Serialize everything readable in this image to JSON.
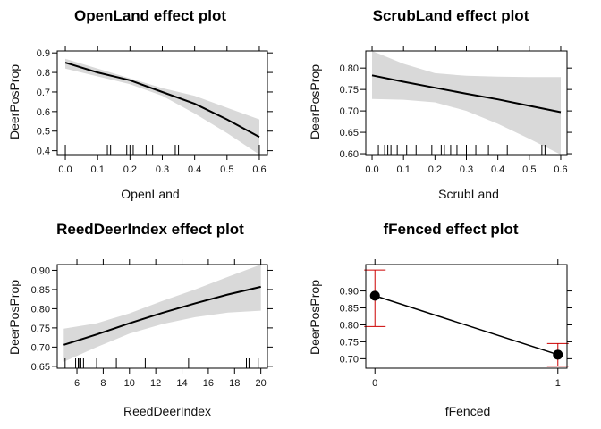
{
  "chart_data": [
    {
      "type": "line",
      "title": "OpenLand effect plot",
      "xlabel": "OpenLand",
      "ylabel": "DeerPosProp",
      "xlim": [
        -0.025,
        0.625
      ],
      "ylim": [
        0.38,
        0.91
      ],
      "xticks": [
        0.0,
        0.1,
        0.2,
        0.3,
        0.4,
        0.5,
        0.6
      ],
      "xtick_labels": [
        "0.0",
        "0.1",
        "0.2",
        "0.3",
        "0.4",
        "0.5",
        "0.6"
      ],
      "yticks": [
        0.4,
        0.5,
        0.6,
        0.7,
        0.8,
        0.9
      ],
      "ytick_labels": [
        "0.4",
        "0.5",
        "0.6",
        "0.7",
        "0.8",
        "0.9"
      ],
      "x": [
        0.0,
        0.1,
        0.2,
        0.3,
        0.4,
        0.5,
        0.6
      ],
      "fit": [
        0.85,
        0.8,
        0.76,
        0.7,
        0.64,
        0.56,
        0.47
      ],
      "lower": [
        0.82,
        0.78,
        0.74,
        0.68,
        0.59,
        0.49,
        0.38
      ],
      "upper": [
        0.87,
        0.82,
        0.77,
        0.72,
        0.68,
        0.62,
        0.56
      ],
      "rug": [
        0.0,
        0.13,
        0.14,
        0.19,
        0.2,
        0.21,
        0.25,
        0.27,
        0.34,
        0.35,
        0.6
      ],
      "band_color": "#d9d9d9",
      "line_color": "#000000"
    },
    {
      "type": "line",
      "title": "ScrubLand effect plot",
      "xlabel": "ScrubLand",
      "ylabel": "DeerPosProp",
      "xlim": [
        -0.02,
        0.62
      ],
      "ylim": [
        0.598,
        0.84
      ],
      "xticks": [
        0.0,
        0.1,
        0.2,
        0.3,
        0.4,
        0.5,
        0.6
      ],
      "xtick_labels": [
        "0.0",
        "0.1",
        "0.2",
        "0.3",
        "0.4",
        "0.5",
        "0.6"
      ],
      "yticks": [
        0.6,
        0.65,
        0.7,
        0.75,
        0.8
      ],
      "ytick_labels": [
        "0.60",
        "0.65",
        "0.70",
        "0.75",
        "0.80"
      ],
      "x": [
        0.0,
        0.1,
        0.2,
        0.3,
        0.4,
        0.5,
        0.6
      ],
      "fit": [
        0.783,
        0.768,
        0.754,
        0.74,
        0.727,
        0.712,
        0.697
      ],
      "lower": [
        0.728,
        0.726,
        0.72,
        0.7,
        0.67,
        0.635,
        0.598
      ],
      "upper": [
        0.84,
        0.81,
        0.788,
        0.782,
        0.78,
        0.779,
        0.779
      ],
      "rug": [
        0.02,
        0.04,
        0.05,
        0.06,
        0.08,
        0.11,
        0.14,
        0.19,
        0.22,
        0.23,
        0.25,
        0.27,
        0.3,
        0.33,
        0.37,
        0.43,
        0.54,
        0.55
      ],
      "band_color": "#d9d9d9",
      "line_color": "#000000"
    },
    {
      "type": "line",
      "title": "ReedDeerIndex effect plot",
      "xlabel": "ReedDeerIndex",
      "ylabel": "DeerPosProp",
      "xlim": [
        4.5,
        20.5
      ],
      "ylim": [
        0.645,
        0.915
      ],
      "xticks": [
        6,
        8,
        10,
        12,
        14,
        16,
        18,
        20
      ],
      "xtick_labels": [
        "6",
        "8",
        "10",
        "12",
        "14",
        "16",
        "18",
        "20"
      ],
      "yticks": [
        0.65,
        0.7,
        0.75,
        0.8,
        0.85,
        0.9
      ],
      "ytick_labels": [
        "0.65",
        "0.70",
        "0.75",
        "0.80",
        "0.85",
        "0.90"
      ],
      "x": [
        5,
        7.5,
        10,
        12.5,
        15,
        17.5,
        20
      ],
      "fit": [
        0.706,
        0.733,
        0.762,
        0.789,
        0.814,
        0.837,
        0.857
      ],
      "lower": [
        0.662,
        0.7,
        0.735,
        0.76,
        0.778,
        0.79,
        0.795
      ],
      "upper": [
        0.748,
        0.762,
        0.788,
        0.82,
        0.85,
        0.883,
        0.915
      ],
      "rug": [
        5.1,
        5.9,
        6.1,
        6.2,
        6.3,
        6.5,
        7.5,
        9.0,
        11.2,
        14.5,
        18.9,
        19.1,
        19.8
      ],
      "band_color": "#d9d9d9",
      "line_color": "#000000"
    },
    {
      "type": "scatter",
      "title": "fFenced effect plot",
      "xlabel": "fFenced",
      "ylabel": "DeerPosProp",
      "categories": [
        "0",
        "1"
      ],
      "xlim": [
        -0.05,
        1.05
      ],
      "ylim": [
        0.672,
        0.978
      ],
      "yticks": [
        0.7,
        0.75,
        0.8,
        0.85,
        0.9
      ],
      "ytick_labels": [
        "0.70",
        "0.75",
        "0.80",
        "0.85",
        "0.90"
      ],
      "values": [
        0.886,
        0.712
      ],
      "lower": [
        0.795,
        0.678
      ],
      "upper": [
        0.962,
        0.745
      ],
      "error_color": "#cc0000",
      "point_color": "#000000",
      "line_color": "#000000"
    }
  ]
}
